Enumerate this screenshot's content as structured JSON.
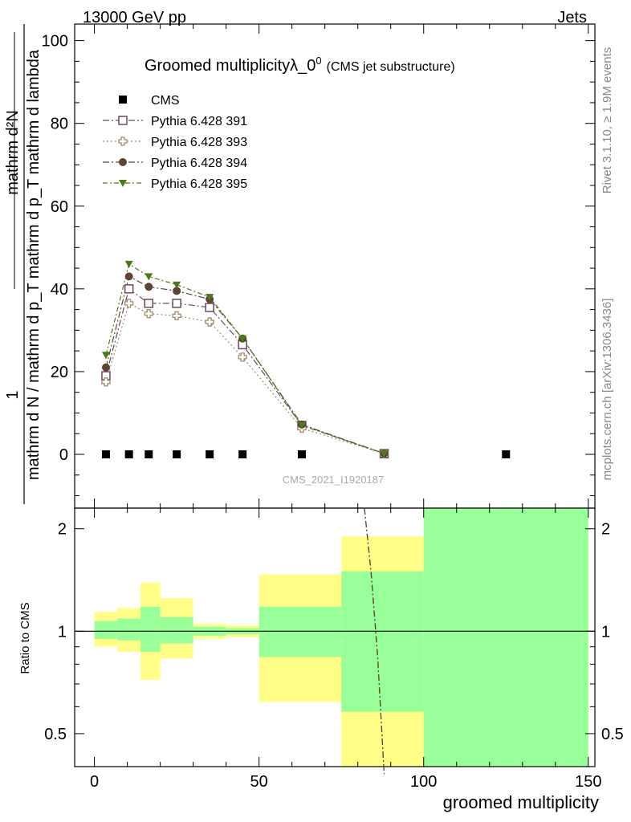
{
  "header": {
    "left": "13000 GeV pp",
    "right": "Jets"
  },
  "side_labels": {
    "rivet": "Rivet 3.1.10, ≥ 1.9M events",
    "mcplots": "mcplots.cern.ch [arXiv:1306.3436]"
  },
  "chart_data": [
    {
      "type": "line",
      "title": "Groomed multiplicityλ_0",
      "title_sup": "0",
      "subtitle": "(CMS jet substructure)",
      "watermark": "CMS_2021_I1920187",
      "ylabel_numerator": "mathrm d²N",
      "ylabel_denominator": "mathrm d N / mathrm d p",
      "ylabel_full": "mathrm d N / mathrm d p_T mathrm d p_T mathrm d lambda",
      "ylabel_one": "1",
      "ylim": [
        -13,
        104
      ],
      "xlim": [
        -6,
        152
      ],
      "yticks": [
        0,
        20,
        40,
        60,
        80,
        100
      ],
      "legend_position": "top-left",
      "series": [
        {
          "name": "CMS",
          "color": "#000000",
          "marker": "square",
          "x": [
            3.5,
            10.5,
            16.5,
            25,
            35,
            45,
            63,
            88,
            125
          ],
          "y": [
            0,
            0,
            0,
            0,
            0,
            0,
            0,
            0,
            0
          ]
        },
        {
          "name": "Pythia 6.428 391",
          "color": "#6b4a5e",
          "marker": "open-square",
          "dash": "8,3,2,3",
          "x": [
            3.5,
            10.5,
            16.5,
            25,
            35,
            45,
            63,
            88
          ],
          "y": [
            19,
            40,
            36.5,
            36.5,
            35.5,
            26.5,
            7,
            0.2
          ]
        },
        {
          "name": "Pythia 6.428 393",
          "color": "#a08c66",
          "marker": "open-plus",
          "dash": "2,3",
          "x": [
            3.5,
            10.5,
            16.5,
            25,
            35,
            45,
            63,
            88
          ],
          "y": [
            17.5,
            36.5,
            34,
            33.5,
            32,
            23.5,
            6.3,
            0.2
          ]
        },
        {
          "name": "Pythia 6.428 394",
          "color": "#5e4433",
          "marker": "circle",
          "dash": "8,3,2,3",
          "x": [
            3.5,
            10.5,
            16.5,
            25,
            35,
            45,
            63,
            88
          ],
          "y": [
            21,
            43,
            40.5,
            39.5,
            37.5,
            28,
            7.2,
            0.2
          ]
        },
        {
          "name": "Pythia 6.428 395",
          "color": "#4a7a1c",
          "marker": "triangle-down",
          "dash": "6,3,2,3",
          "x": [
            3.5,
            10.5,
            16.5,
            25,
            35,
            45,
            63,
            88
          ],
          "y": [
            24,
            46,
            43,
            41,
            38,
            28,
            7,
            0.2
          ]
        }
      ]
    },
    {
      "type": "area",
      "ylabel": "Ratio to CMS",
      "xlabel": "groomed multiplicity",
      "scale": "log",
      "ylim": [
        0.4,
        2.3
      ],
      "xlim": [
        -6,
        152
      ],
      "yticks": [
        0.5,
        1,
        2
      ],
      "xticks": [
        0,
        50,
        100,
        150
      ],
      "reference_line": 1,
      "bands": [
        {
          "x0": 0,
          "x1": 7,
          "green": [
            0.95,
            1.07
          ],
          "yellow": [
            0.9,
            1.14
          ]
        },
        {
          "x0": 7,
          "x1": 14,
          "green": [
            0.94,
            1.09
          ],
          "yellow": [
            0.87,
            1.17
          ]
        },
        {
          "x0": 14,
          "x1": 20,
          "green": [
            0.87,
            1.18
          ],
          "yellow": [
            0.72,
            1.39
          ]
        },
        {
          "x0": 20,
          "x1": 30,
          "green": [
            0.92,
            1.1
          ],
          "yellow": [
            0.83,
            1.25
          ]
        },
        {
          "x0": 30,
          "x1": 40,
          "green": [
            0.97,
            1.03
          ],
          "yellow": [
            0.95,
            1.05
          ]
        },
        {
          "x0": 40,
          "x1": 50,
          "green": [
            0.98,
            1.02
          ],
          "yellow": [
            0.96,
            1.04
          ]
        },
        {
          "x0": 50,
          "x1": 75,
          "green": [
            0.84,
            1.18
          ],
          "yellow": [
            0.62,
            1.47
          ]
        },
        {
          "x0": 75,
          "x1": 100,
          "green": [
            0.58,
            1.5
          ],
          "yellow": [
            0.38,
            1.9
          ]
        },
        {
          "x0": 100,
          "x1": 150,
          "green": [
            0.38,
            2.3
          ],
          "yellow": [
            0.38,
            2.4
          ]
        }
      ],
      "curve": {
        "color": "#5e4433",
        "x": [
          82,
          84,
          86,
          88
        ],
        "y": [
          2.3,
          1.5,
          0.85,
          0.38
        ]
      }
    }
  ]
}
